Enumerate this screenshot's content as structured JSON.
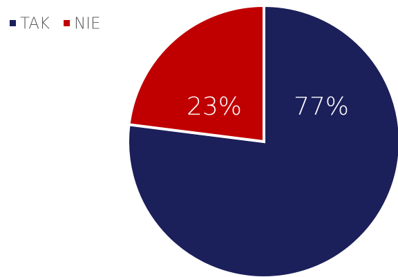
{
  "chart_data": {
    "type": "pie",
    "categories": [
      "TAK",
      "NIE"
    ],
    "values": [
      77,
      23
    ],
    "value_labels": [
      "77%",
      "23%"
    ],
    "colors": [
      "#1b1f5a",
      "#c00000"
    ],
    "legend": "top-left"
  }
}
